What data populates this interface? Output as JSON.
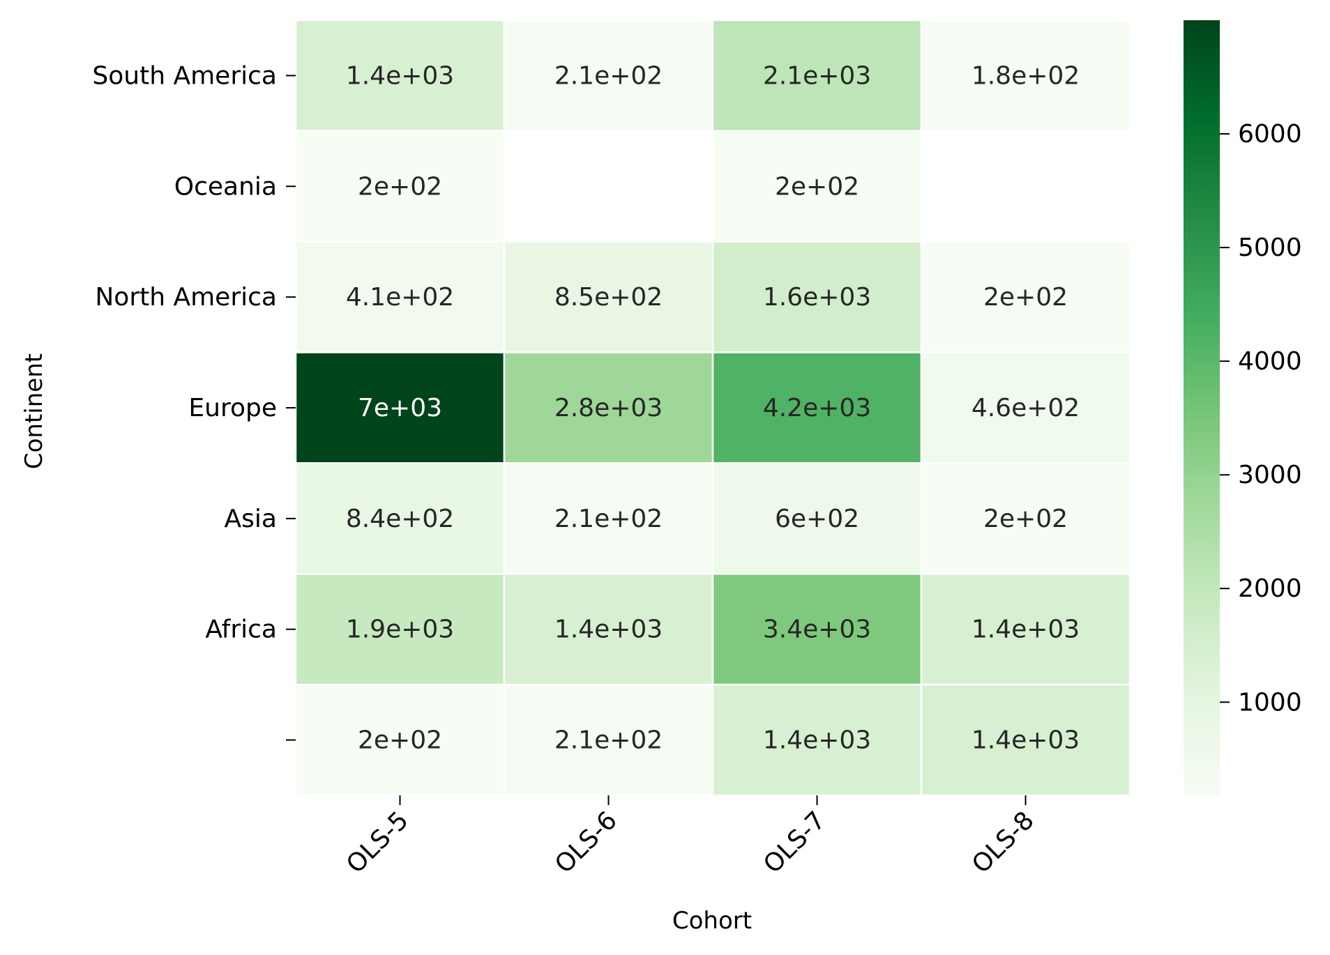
{
  "chart_data": {
    "type": "heatmap",
    "title": "",
    "xlabel": "Cohort",
    "ylabel": "Continent",
    "x_categories": [
      "OLS-5",
      "OLS-6",
      "OLS-7",
      "OLS-8"
    ],
    "y_categories": [
      "South America",
      "Oceania",
      "North America",
      "Europe",
      "Asia",
      "Africa",
      ""
    ],
    "values": [
      [
        1400,
        210,
        2100,
        180
      ],
      [
        200,
        null,
        200,
        null
      ],
      [
        410,
        850,
        1600,
        200
      ],
      [
        7000,
        2800,
        4200,
        460
      ],
      [
        840,
        210,
        600,
        200
      ],
      [
        1900,
        1400,
        3400,
        1400
      ],
      [
        200,
        210,
        1400,
        1400
      ]
    ],
    "labels": [
      [
        "1.4e+03",
        "2.1e+02",
        "2.1e+03",
        "1.8e+02"
      ],
      [
        "2e+02",
        "",
        "2e+02",
        ""
      ],
      [
        "4.1e+02",
        "8.5e+02",
        "1.6e+03",
        "2e+02"
      ],
      [
        "7e+03",
        "2.8e+03",
        "4.2e+03",
        "4.6e+02"
      ],
      [
        "8.4e+02",
        "2.1e+02",
        "6e+02",
        "2e+02"
      ],
      [
        "1.9e+03",
        "1.4e+03",
        "3.4e+03",
        "1.4e+03"
      ],
      [
        "2e+02",
        "2.1e+02",
        "1.4e+03",
        "1.4e+03"
      ]
    ],
    "colorbar": {
      "colormap": "Greens",
      "range": [
        180,
        7000
      ],
      "ticks": [
        1000,
        2000,
        3000,
        4000,
        5000,
        6000
      ],
      "tick_labels": [
        "1000",
        "2000",
        "3000",
        "4000",
        "5000",
        "6000"
      ]
    },
    "x_tick_rotation": 45
  }
}
